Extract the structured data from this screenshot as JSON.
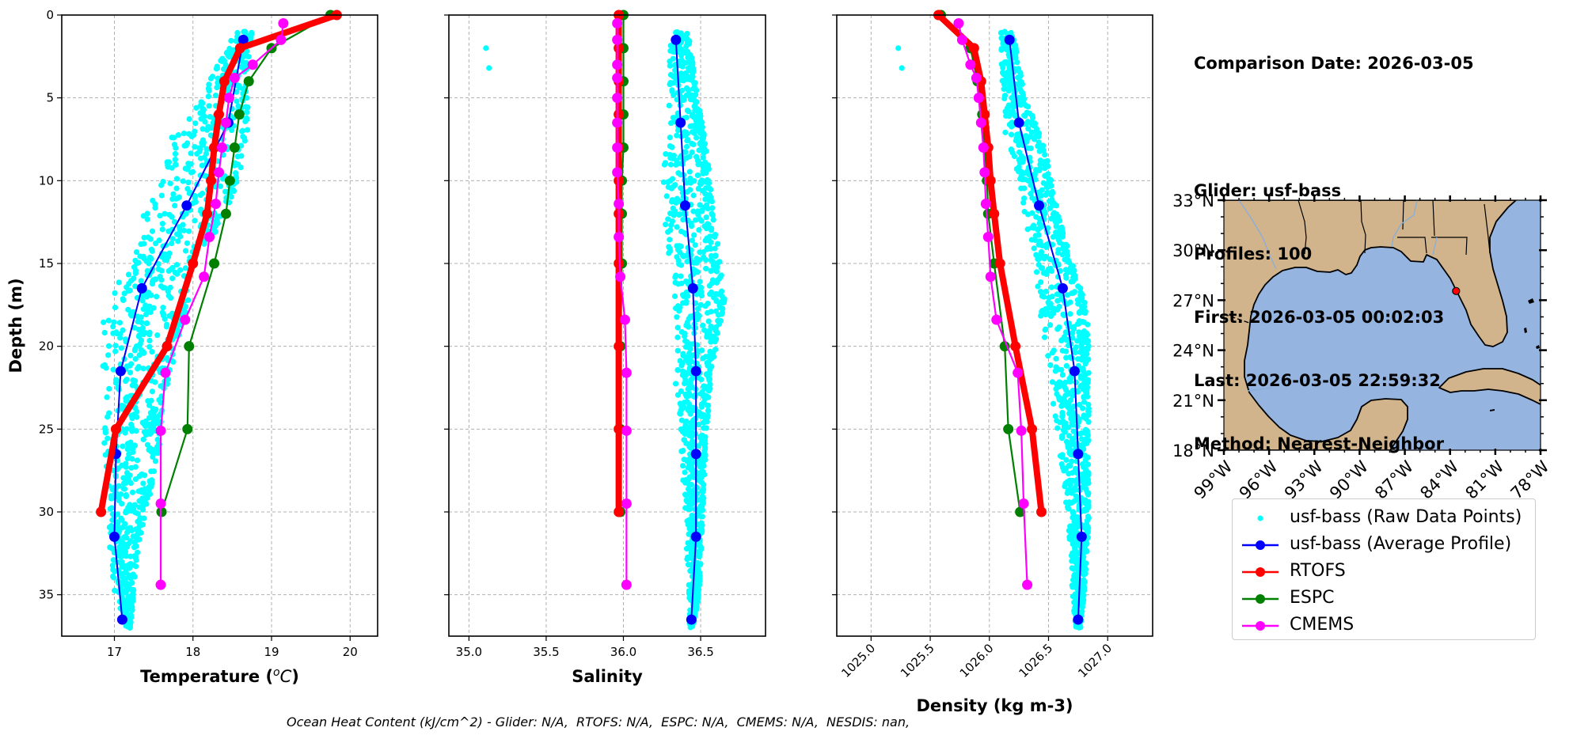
{
  "info": {
    "comparison_date": "Comparison Date: 2026-03-05",
    "glider": "Glider: usf-bass",
    "profiles": "Profiles: 100",
    "first": "First: 2026-03-05 00:02:03",
    "last": "Last: 2026-03-05 22:59:32",
    "method": "Method: Nearest-Neighbor"
  },
  "footer": "Ocean Heat Content (kJ/cm^2) - Glider: N/A,  RTOFS: N/A,  ESPC: N/A,  CMEMS: N/A,  NESDIS: nan,",
  "colors": {
    "raw": "#00ffff",
    "glider": "#0000ff",
    "rtofs": "#ff0000",
    "espc": "#008000",
    "cmems": "#ff00ff",
    "land": "#d2b48c",
    "ocean": "#95b4e0"
  },
  "legend": [
    {
      "key": "raw",
      "label": "usf-bass (Raw Data Points)"
    },
    {
      "key": "glider",
      "label": "usf-bass (Average Profile)"
    },
    {
      "key": "rtofs",
      "label": "RTOFS"
    },
    {
      "key": "espc",
      "label": "ESPC"
    },
    {
      "key": "cmems",
      "label": "CMEMS"
    }
  ],
  "chart_data": [
    {
      "type": "line",
      "title": "",
      "xlabel": "Temperature (°C)",
      "ylabel": "Depth (m)",
      "xlim": [
        16.33,
        20.35
      ],
      "ylim": [
        37.5,
        0
      ],
      "xticks": [
        17,
        18,
        19,
        20
      ],
      "yticks": [
        0,
        5,
        10,
        15,
        20,
        25,
        30,
        35
      ],
      "grid": true,
      "series": [
        {
          "name": "usf-bass (Average Profile)",
          "key": "glider",
          "depth": [
            1.5,
            6.5,
            11.5,
            16.5,
            21.5,
            26.5,
            31.5,
            36.5
          ],
          "values": [
            18.64,
            18.45,
            17.92,
            17.35,
            17.08,
            17.02,
            17.0,
            17.1
          ]
        },
        {
          "name": "RTOFS",
          "key": "rtofs",
          "depth": [
            0,
            2,
            4,
            6,
            8,
            10,
            12,
            15,
            20,
            25,
            30
          ],
          "values": [
            19.83,
            18.6,
            18.4,
            18.33,
            18.27,
            18.23,
            18.18,
            18.0,
            17.67,
            17.02,
            16.83
          ]
        },
        {
          "name": "ESPC",
          "key": "espc",
          "depth": [
            0,
            2,
            4,
            6,
            8,
            10,
            12,
            15,
            20,
            25,
            30
          ],
          "values": [
            19.75,
            19.0,
            18.71,
            18.59,
            18.53,
            18.47,
            18.42,
            18.27,
            17.95,
            17.93,
            17.6
          ]
        },
        {
          "name": "CMEMS",
          "key": "cmems",
          "depth": [
            0.5,
            1.5,
            3.0,
            3.8,
            5.0,
            6.5,
            8.0,
            9.5,
            11.4,
            13.4,
            15.8,
            18.4,
            21.6,
            25.1,
            29.5,
            34.4
          ],
          "values": [
            19.15,
            19.12,
            18.76,
            18.53,
            18.46,
            18.42,
            18.37,
            18.33,
            18.29,
            18.21,
            18.14,
            17.9,
            17.65,
            17.59,
            17.59,
            17.59
          ]
        }
      ],
      "raw_envelope": {
        "name": "usf-bass (Raw Data Points)",
        "key": "raw",
        "depth": [
          1,
          3,
          5,
          7,
          9,
          11,
          13,
          15,
          17,
          19,
          21,
          23,
          25,
          27,
          29,
          31,
          33,
          35,
          37
        ],
        "min": [
          18.55,
          18.3,
          18.05,
          17.75,
          17.6,
          17.45,
          17.3,
          17.15,
          16.85,
          16.85,
          16.85,
          16.85,
          16.85,
          16.87,
          16.9,
          16.92,
          16.95,
          17.0,
          17.15
        ],
        "max": [
          18.75,
          18.7,
          18.7,
          18.7,
          18.62,
          18.5,
          18.3,
          18.0,
          17.95,
          17.85,
          17.75,
          17.65,
          17.6,
          17.55,
          17.45,
          17.35,
          17.28,
          17.25,
          17.2
        ]
      }
    },
    {
      "type": "line",
      "title": "",
      "xlabel": "Salinity",
      "ylabel": "",
      "xlim": [
        34.87,
        36.92
      ],
      "ylim": [
        37.5,
        0
      ],
      "xticks": [
        35.0,
        35.5,
        36.0,
        36.5
      ],
      "yticks": [
        0,
        5,
        10,
        15,
        20,
        25,
        30,
        35
      ],
      "grid": true,
      "series": [
        {
          "name": "usf-bass (Average Profile)",
          "key": "glider",
          "depth": [
            1.5,
            6.5,
            11.5,
            16.5,
            21.5,
            26.5,
            31.5,
            36.5
          ],
          "values": [
            36.34,
            36.37,
            36.4,
            36.45,
            36.47,
            36.47,
            36.47,
            36.44
          ]
        },
        {
          "name": "RTOFS",
          "key": "rtofs",
          "depth": [
            0,
            2,
            4,
            6,
            8,
            10,
            12,
            15,
            20,
            25,
            30
          ],
          "values": [
            35.97,
            35.97,
            35.97,
            35.97,
            35.97,
            35.97,
            35.97,
            35.97,
            35.97,
            35.97,
            35.97
          ]
        },
        {
          "name": "ESPC",
          "key": "espc",
          "depth": [
            0,
            2,
            4,
            6,
            8,
            10,
            12,
            15,
            20,
            25,
            30
          ],
          "values": [
            36.0,
            36.0,
            36.0,
            36.0,
            36.0,
            35.99,
            35.99,
            35.99,
            35.98,
            35.98,
            35.98
          ]
        },
        {
          "name": "CMEMS",
          "key": "cmems",
          "depth": [
            0.5,
            1.5,
            3.0,
            3.8,
            5.0,
            6.5,
            8.0,
            9.5,
            11.4,
            13.4,
            15.8,
            18.4,
            21.6,
            25.1,
            29.5,
            34.4
          ],
          "values": [
            35.96,
            35.96,
            35.96,
            35.96,
            35.96,
            35.96,
            35.96,
            35.96,
            35.97,
            35.97,
            35.98,
            36.01,
            36.02,
            36.02,
            36.02,
            36.02
          ]
        }
      ],
      "raw_outliers": [
        [
          35.11,
          2.0
        ],
        [
          35.13,
          3.2
        ]
      ],
      "raw_envelope": {
        "name": "usf-bass (Raw Data Points)",
        "key": "raw",
        "depth": [
          1,
          3,
          5,
          7,
          9,
          11,
          13,
          15,
          17,
          19,
          21,
          23,
          25,
          27,
          29,
          31,
          33,
          35,
          37
        ],
        "min": [
          36.32,
          36.28,
          36.29,
          36.27,
          36.26,
          36.26,
          36.27,
          36.29,
          36.3,
          36.32,
          36.33,
          36.34,
          36.36,
          36.38,
          36.39,
          36.4,
          36.41,
          36.42,
          36.43
        ],
        "max": [
          36.42,
          36.45,
          36.48,
          36.52,
          36.55,
          36.57,
          36.6,
          36.63,
          36.66,
          36.62,
          36.58,
          36.56,
          36.54,
          36.53,
          36.52,
          36.51,
          36.5,
          36.49,
          36.45
        ]
      }
    },
    {
      "type": "line",
      "title": "",
      "xlabel": "Density (kg m-3)",
      "ylabel": "",
      "xlim": [
        1024.71,
        1027.38
      ],
      "ylim": [
        37.5,
        0
      ],
      "xticks": [
        1025.0,
        1025.5,
        1026.0,
        1026.5,
        1027.0
      ],
      "yticks": [
        0,
        5,
        10,
        15,
        20,
        25,
        30,
        35
      ],
      "grid": true,
      "series": [
        {
          "name": "usf-bass (Average Profile)",
          "key": "glider",
          "depth": [
            1.5,
            6.5,
            11.5,
            16.5,
            21.5,
            26.5,
            31.5,
            36.5
          ],
          "values": [
            1026.17,
            1026.25,
            1026.42,
            1026.62,
            1026.72,
            1026.75,
            1026.78,
            1026.75
          ]
        },
        {
          "name": "RTOFS",
          "key": "rtofs",
          "depth": [
            0,
            2,
            4,
            6,
            8,
            10,
            12,
            15,
            20,
            25,
            30
          ],
          "values": [
            1025.57,
            1025.87,
            1025.93,
            1025.96,
            1025.99,
            1026.01,
            1026.04,
            1026.09,
            1026.22,
            1026.36,
            1026.44
          ]
        },
        {
          "name": "ESPC",
          "key": "espc",
          "depth": [
            0,
            2,
            4,
            6,
            8,
            10,
            12,
            15,
            20,
            25,
            30
          ],
          "values": [
            1025.59,
            1025.84,
            1025.9,
            1025.94,
            1025.96,
            1025.98,
            1025.99,
            1026.04,
            1026.13,
            1026.16,
            1026.26
          ]
        },
        {
          "name": "CMEMS",
          "key": "cmems",
          "depth": [
            0.5,
            1.5,
            3.0,
            3.8,
            5.0,
            6.5,
            8.0,
            9.5,
            11.4,
            13.4,
            15.8,
            18.4,
            21.6,
            25.1,
            29.5,
            34.4
          ],
          "values": [
            1025.74,
            1025.77,
            1025.84,
            1025.89,
            1025.91,
            1025.93,
            1025.95,
            1025.96,
            1025.97,
            1025.99,
            1026.01,
            1026.06,
            1026.24,
            1026.27,
            1026.29,
            1026.32
          ]
        }
      ],
      "raw_outliers": [
        [
          1025.23,
          2.0
        ],
        [
          1025.26,
          3.2
        ]
      ],
      "raw_envelope": {
        "name": "usf-bass (Raw Data Points)",
        "key": "raw",
        "depth": [
          1,
          3,
          5,
          7,
          9,
          11,
          13,
          15,
          17,
          19,
          21,
          23,
          25,
          27,
          29,
          31,
          33,
          35,
          37
        ],
        "min": [
          1026.08,
          1026.1,
          1026.12,
          1026.13,
          1026.2,
          1026.26,
          1026.32,
          1026.36,
          1026.4,
          1026.45,
          1026.5,
          1026.52,
          1026.56,
          1026.6,
          1026.64,
          1026.67,
          1026.69,
          1026.7,
          1026.72
        ],
        "max": [
          1026.2,
          1026.25,
          1026.3,
          1026.42,
          1026.5,
          1026.55,
          1026.62,
          1026.7,
          1026.8,
          1026.84,
          1026.84,
          1026.84,
          1026.84,
          1026.84,
          1026.84,
          1026.84,
          1026.82,
          1026.8,
          1026.77
        ]
      }
    },
    {
      "type": "scatter",
      "title": "",
      "xlabel": "",
      "ylabel": "",
      "xlim": [
        -99,
        -78
      ],
      "ylim": [
        18,
        33
      ],
      "xticks": [
        "99°W",
        "96°W",
        "93°W",
        "90°W",
        "87°W",
        "84°W",
        "81°W",
        "78°W"
      ],
      "yticks": [
        "18°N",
        "21°N",
        "24°N",
        "27°N",
        "30°N",
        "33°N"
      ],
      "points": [
        {
          "name": "usf-bass",
          "lon": -83.6,
          "lat": 27.55,
          "color": "#ff0000"
        }
      ]
    }
  ]
}
